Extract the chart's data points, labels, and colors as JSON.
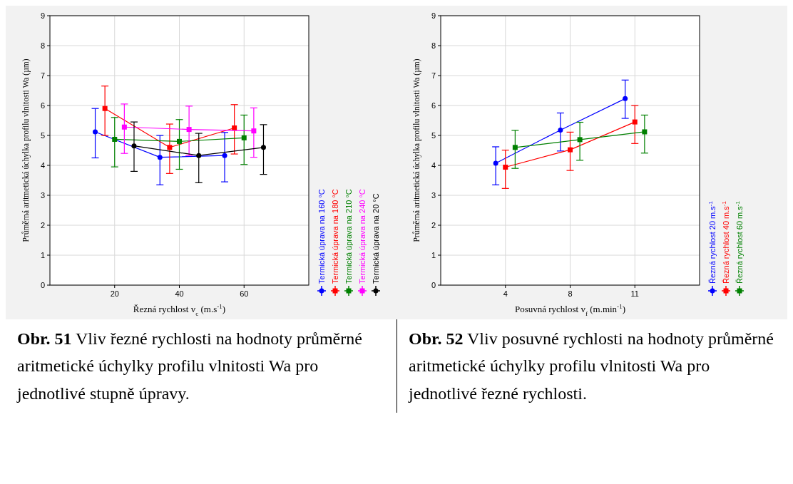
{
  "chart_data": [
    {
      "type": "line",
      "xlabel": "Řezná rychlost v$_{c}$ (m.s$^{-1}$)",
      "ylabel": "Průměrná aritmetická úchylka profilu vlnitosti  Wa (µm)",
      "xlim": [
        0,
        80
      ],
      "xticks": [
        20,
        40,
        60
      ],
      "ylim": [
        0,
        9
      ],
      "yticks": [
        0,
        1,
        2,
        3,
        4,
        5,
        6,
        7,
        8,
        9
      ],
      "grid": true,
      "legend": "right",
      "line_style": "solid",
      "series": [
        {
          "name": "Termická úprava na 160 °C",
          "color": "#0000ff",
          "marker": "circle",
          "x": [
            14,
            34,
            54
          ],
          "values": [
            5.12,
            4.27,
            4.33
          ],
          "errors": [
            [
              4.25,
              5.9
            ],
            [
              3.35,
              5.0
            ],
            [
              3.45,
              5.1
            ]
          ]
        },
        {
          "name": "Termická úprava na 180 °C",
          "color": "#ff0000",
          "marker": "square",
          "x": [
            17,
            37,
            57
          ],
          "values": [
            5.9,
            4.6,
            5.25
          ],
          "errors": [
            [
              5.0,
              6.65
            ],
            [
              3.73,
              5.38
            ],
            [
              4.38,
              6.03
            ]
          ]
        },
        {
          "name": "Termická úprava na 210 °C",
          "color": "#008000",
          "marker": "square",
          "x": [
            20,
            40,
            60
          ],
          "values": [
            4.87,
            4.8,
            4.92
          ],
          "errors": [
            [
              3.95,
              5.6
            ],
            [
              3.87,
              5.53
            ],
            [
              4.03,
              5.68
            ]
          ]
        },
        {
          "name": "Termická úprava na 240 °C",
          "color": "#ff00ff",
          "marker": "square",
          "x": [
            23,
            43,
            63
          ],
          "values": [
            5.28,
            5.2,
            5.15
          ],
          "errors": [
            [
              4.4,
              6.05
            ],
            [
              4.33,
              5.98
            ],
            [
              4.27,
              5.92
            ]
          ]
        },
        {
          "name": "Termická úprava na 20 °C",
          "color": "#000000",
          "marker": "circle",
          "x": [
            26,
            46,
            66
          ],
          "values": [
            4.65,
            4.33,
            4.6
          ],
          "errors": [
            [
              3.8,
              5.45
            ],
            [
              3.42,
              5.07
            ],
            [
              3.7,
              5.36
            ]
          ]
        }
      ],
      "annotations": [
        "Obr. 51 Vliv řezné rychlosti na hodnoty průměrné aritmetické úchylky profilu vlnitosti Wa pro jednotlivé stupně úpravy."
      ]
    },
    {
      "type": "line",
      "xlabel": "Posuvná rychlost v$_{f}$ (m.min$^{-1}$)",
      "ylabel": "Průměrná aritmetická úchylka profilu vlnitosti  Wa (µm)",
      "categories": [
        "4",
        "8",
        "11"
      ],
      "ylim": [
        0,
        9
      ],
      "yticks": [
        0,
        1,
        2,
        3,
        4,
        5,
        6,
        7,
        8,
        9
      ],
      "grid": true,
      "legend": "right",
      "line_style": "solid",
      "series": [
        {
          "name": "Řezná rychlost 20 m.s$^{-1}$",
          "color": "#0000ff",
          "marker": "circle",
          "values": [
            4.07,
            5.18,
            6.23
          ],
          "errors": [
            [
              3.35,
              4.62
            ],
            [
              4.48,
              5.75
            ],
            [
              5.57,
              6.85
            ]
          ]
        },
        {
          "name": "Řezná rychlost 40 m.s$^{-1}$",
          "color": "#ff0000",
          "marker": "square",
          "values": [
            3.94,
            4.52,
            5.45
          ],
          "errors": [
            [
              3.23,
              4.51
            ],
            [
              3.83,
              5.11
            ],
            [
              4.73,
              6.0
            ]
          ]
        },
        {
          "name": "Řezná rychlost 60 m.s$^{-1}$",
          "color": "#008000",
          "marker": "square",
          "values": [
            4.6,
            4.86,
            5.12
          ],
          "errors": [
            [
              3.9,
              5.17
            ],
            [
              4.17,
              5.44
            ],
            [
              4.41,
              5.68
            ]
          ]
        }
      ],
      "annotations": [
        "Obr. 52 Vliv posuvné rychlosti na hodnoty průměrné aritmetické úchylky profilu vlnitosti Wa pro jednotlivé řezné rychlosti."
      ]
    }
  ]
}
